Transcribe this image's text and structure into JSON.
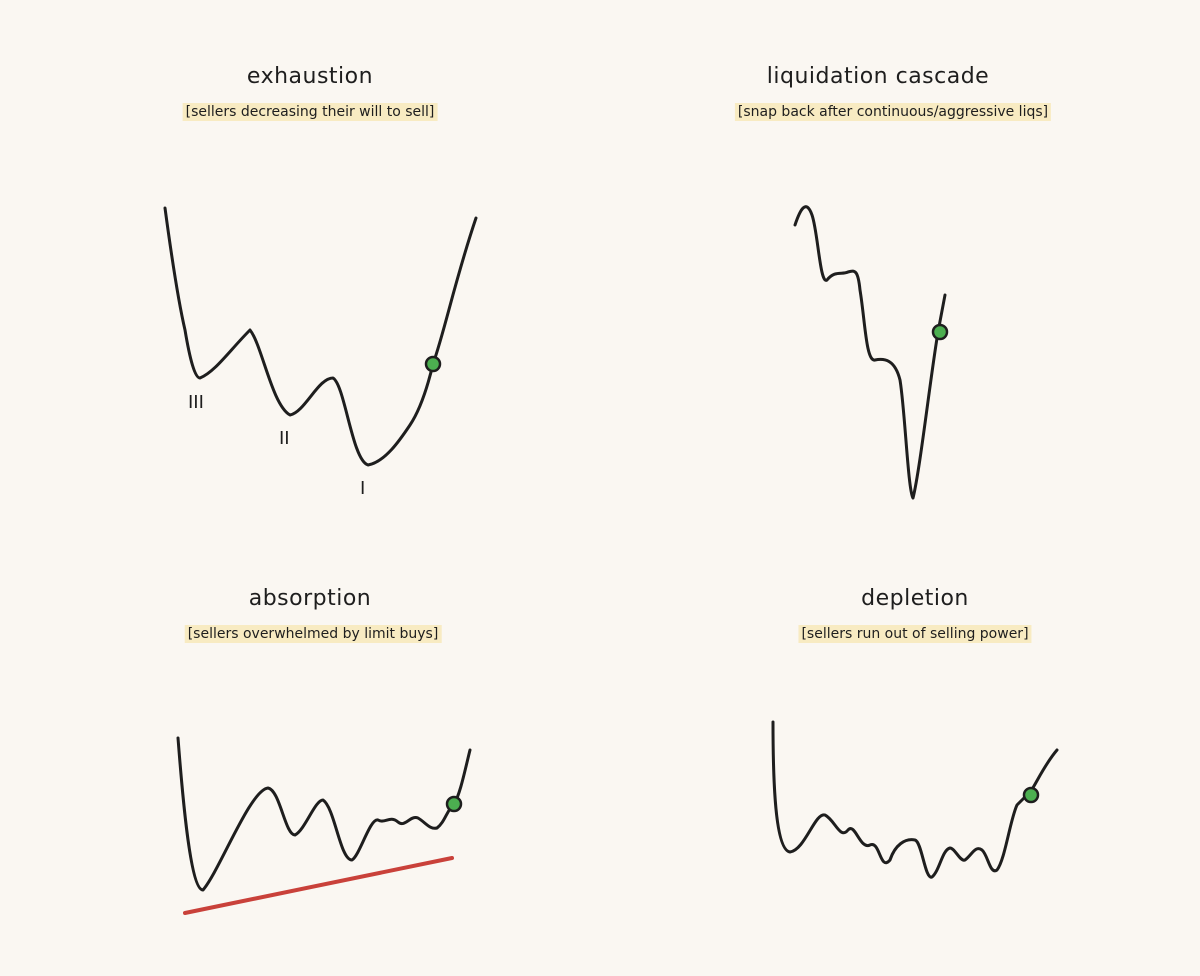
{
  "panels": [
    {
      "title": "exhaustion",
      "subtitle": "[sellers decreasing their will to sell]",
      "markers": [
        "III",
        "II",
        "I"
      ]
    },
    {
      "title": "liquidation cascade",
      "subtitle": "[snap back after continuous/aggressive liqs]"
    },
    {
      "title": "absorption",
      "subtitle": "[sellers overwhelmed by limit buys]"
    },
    {
      "title": "depletion",
      "subtitle": "[sellers run out of selling power]"
    }
  ],
  "colors": {
    "background": "#faf7f2",
    "highlight": "#f8ebc2",
    "entry_dot": "#4caf50",
    "support_line": "#c9413a",
    "line": "#1e1e1e"
  }
}
